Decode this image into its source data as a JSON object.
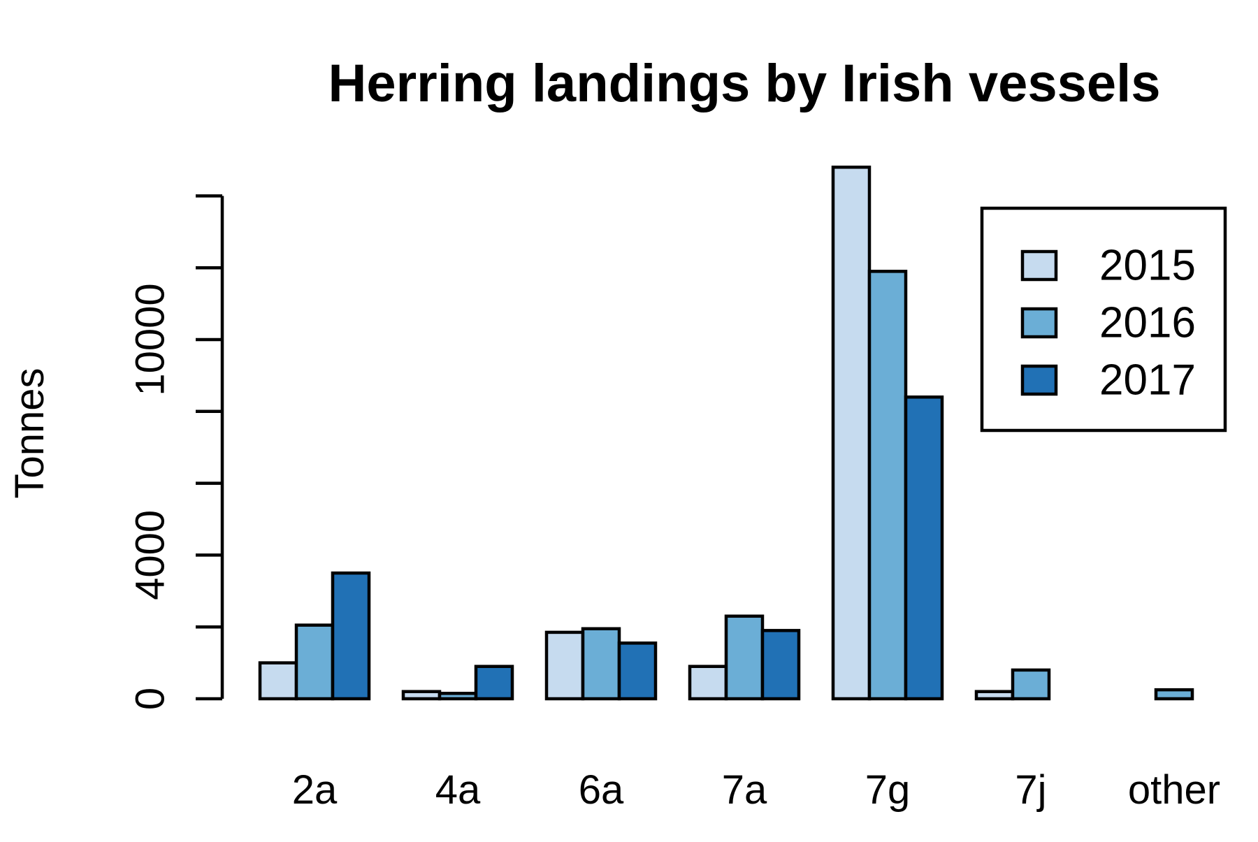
{
  "chart_data": {
    "type": "bar",
    "title": "Herring landings by Irish vessels",
    "xlabel": "",
    "ylabel": "Tonnes",
    "categories": [
      "2a",
      "4a",
      "6a",
      "7a",
      "7g",
      "7j",
      "other"
    ],
    "series": [
      {
        "name": "2015",
        "color": "#c6dbef",
        "values": [
          1000,
          200,
          1850,
          900,
          14800,
          200,
          0
        ]
      },
      {
        "name": "2016",
        "color": "#6baed6",
        "values": [
          2050,
          150,
          1950,
          2300,
          11900,
          800,
          250
        ]
      },
      {
        "name": "2017",
        "color": "#2171b5",
        "values": [
          3500,
          900,
          1550,
          1900,
          8400,
          0,
          0
        ]
      }
    ],
    "ylim": [
      0,
      14000
    ],
    "yticks": [
      0,
      2000,
      4000,
      6000,
      8000,
      10000,
      12000,
      14000
    ],
    "ytick_labels": [
      "0",
      "",
      "4000",
      "",
      "",
      "10000",
      "",
      ""
    ],
    "legend_position": "top-right",
    "grid": false,
    "bar_border_color": "#000000"
  }
}
